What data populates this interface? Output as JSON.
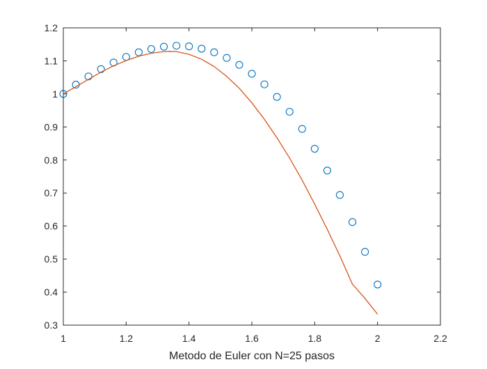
{
  "chart_data": {
    "type": "scatter",
    "title": "",
    "xlabel": "Metodo de Euler con N=25 pasos",
    "ylabel": "",
    "xlim": [
      1,
      2.2
    ],
    "ylim": [
      0.3,
      1.2
    ],
    "xticks": [
      1,
      1.2,
      1.4,
      1.6,
      1.8,
      2,
      2.2
    ],
    "xtick_labels": [
      "1",
      "1.2",
      "1.4",
      "1.6",
      "1.8",
      "2",
      "2.2"
    ],
    "yticks": [
      0.3,
      0.4,
      0.5,
      0.6,
      0.7,
      0.8,
      0.9,
      1,
      1.1,
      1.2
    ],
    "ytick_labels": [
      "0.3",
      "0.4",
      "0.5",
      "0.6",
      "0.7",
      "0.8",
      "0.9",
      "1",
      "1.1",
      "1.2"
    ],
    "grid": false,
    "legend": null,
    "series": [
      {
        "type": "scatter",
        "marker": "circle-open",
        "color": "#0072BD",
        "x": [
          1.0,
          1.04,
          1.08,
          1.12,
          1.16,
          1.2,
          1.24,
          1.28,
          1.32,
          1.36,
          1.4,
          1.44,
          1.48,
          1.52,
          1.56,
          1.6,
          1.64,
          1.68,
          1.72,
          1.76,
          1.8,
          1.84,
          1.88,
          1.92,
          1.96,
          2.0
        ],
        "y": [
          1.0,
          1.028,
          1.053,
          1.075,
          1.095,
          1.112,
          1.126,
          1.136,
          1.143,
          1.146,
          1.144,
          1.137,
          1.126,
          1.109,
          1.088,
          1.061,
          1.029,
          0.991,
          0.946,
          0.894,
          0.834,
          0.768,
          0.694,
          0.612,
          0.522,
          0.423
        ]
      },
      {
        "type": "line",
        "color": "#D95319",
        "x": [
          1.0,
          1.04,
          1.08,
          1.12,
          1.16,
          1.2,
          1.24,
          1.28,
          1.32,
          1.34,
          1.36,
          1.4,
          1.44,
          1.48,
          1.52,
          1.56,
          1.6,
          1.64,
          1.68,
          1.72,
          1.76,
          1.8,
          1.84,
          1.88,
          1.92,
          1.96,
          2.0
        ],
        "y": [
          1.0,
          1.022,
          1.044,
          1.066,
          1.085,
          1.101,
          1.114,
          1.123,
          1.128,
          1.129,
          1.128,
          1.12,
          1.105,
          1.083,
          1.053,
          1.017,
          0.973,
          0.923,
          0.867,
          0.806,
          0.739,
          0.666,
          0.59,
          0.51,
          0.424,
          0.381,
          0.333
        ]
      }
    ]
  }
}
